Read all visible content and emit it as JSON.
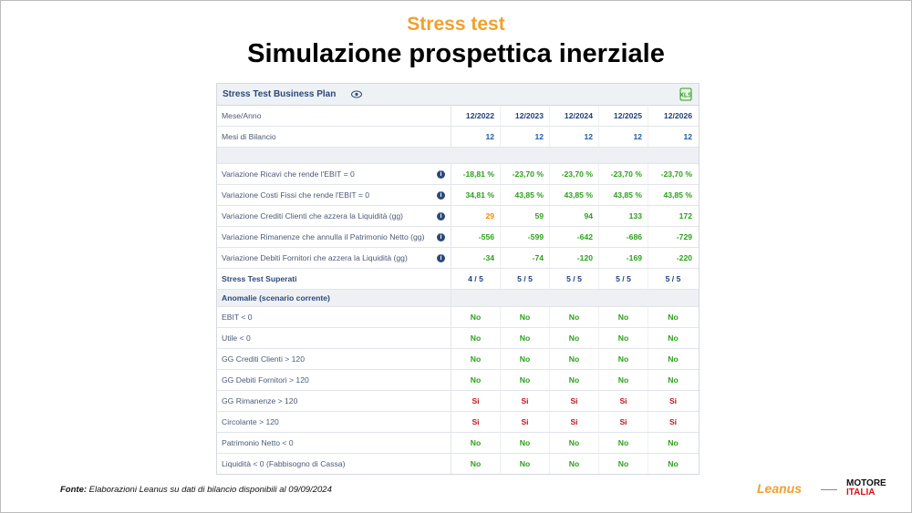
{
  "header": {
    "kicker": "Stress test",
    "title": "Simulazione prospettica inerziale"
  },
  "table": {
    "title": "Stress Test Business Plan",
    "period_label": "Mese/Anno",
    "periods": [
      "12/2022",
      "12/2023",
      "12/2024",
      "12/2025",
      "12/2026"
    ],
    "months_label": "Mesi di Bilancio",
    "months": [
      "12",
      "12",
      "12",
      "12",
      "12"
    ],
    "stress_rows": [
      {
        "label": "Variazione Ricavi che rende l'EBIT = 0",
        "values": [
          "-18,81 %",
          "-23,70 %",
          "-23,70 %",
          "-23,70 %",
          "-23,70 %"
        ],
        "colors": [
          "#2ca01c",
          "#2ca01c",
          "#2ca01c",
          "#2ca01c",
          "#2ca01c"
        ]
      },
      {
        "label": "Variazione Costi Fissi che rende l'EBIT = 0",
        "values": [
          "34,81 %",
          "43,85 %",
          "43,85 %",
          "43,85 %",
          "43,85 %"
        ],
        "colors": [
          "#2ca01c",
          "#2ca01c",
          "#2ca01c",
          "#2ca01c",
          "#2ca01c"
        ]
      },
      {
        "label": "Variazione Crediti Clienti che azzera la Liquidità (gg)",
        "values": [
          "29",
          "59",
          "94",
          "133",
          "172"
        ],
        "colors": [
          "#f08a00",
          "#2ca01c",
          "#2ca01c",
          "#2ca01c",
          "#2ca01c"
        ]
      },
      {
        "label": "Variazione Rimanenze che annulla il Patrimonio Netto (gg)",
        "values": [
          "-556",
          "-599",
          "-642",
          "-686",
          "-729"
        ],
        "colors": [
          "#2ca01c",
          "#2ca01c",
          "#2ca01c",
          "#2ca01c",
          "#2ca01c"
        ]
      },
      {
        "label": "Variazione Debiti Fornitori che azzera la Liquidità (gg)",
        "values": [
          "-34",
          "-74",
          "-120",
          "-169",
          "-220"
        ],
        "colors": [
          "#2ca01c",
          "#2ca01c",
          "#2ca01c",
          "#2ca01c",
          "#2ca01c"
        ]
      }
    ],
    "summary": {
      "label": "Stress Test Superati",
      "values": [
        "4 / 5",
        "5 / 5",
        "5 / 5",
        "5 / 5",
        "5 / 5"
      ]
    },
    "anomalies": {
      "title": "Anomalie (scenario corrente)",
      "rows": [
        {
          "label": "EBIT < 0",
          "values": [
            "No",
            "No",
            "No",
            "No",
            "No"
          ],
          "color": "#2ca01c"
        },
        {
          "label": "Utile < 0",
          "values": [
            "No",
            "No",
            "No",
            "No",
            "No"
          ],
          "color": "#2ca01c"
        },
        {
          "label": "GG Crediti Clienti > 120",
          "values": [
            "No",
            "No",
            "No",
            "No",
            "No"
          ],
          "color": "#2ca01c"
        },
        {
          "label": "GG Debiti Fornitori > 120",
          "values": [
            "No",
            "No",
            "No",
            "No",
            "No"
          ],
          "color": "#2ca01c"
        },
        {
          "label": "GG Rimanenze > 120",
          "values": [
            "Si",
            "Si",
            "Si",
            "Si",
            "Si"
          ],
          "color": "#c0141c"
        },
        {
          "label": "Circolante > 120",
          "values": [
            "Si",
            "Si",
            "Si",
            "Si",
            "Si"
          ],
          "color": "#c0141c"
        },
        {
          "label": "Patrimonio Netto < 0",
          "values": [
            "No",
            "No",
            "No",
            "No",
            "No"
          ],
          "color": "#2ca01c"
        },
        {
          "label": "Liquidità < 0 (Fabbisogno di Cassa)",
          "values": [
            "No",
            "No",
            "No",
            "No",
            "No"
          ],
          "color": "#2ca01c"
        }
      ]
    }
  },
  "footer": {
    "source_label": "Fonte:",
    "source": "Elaborazioni Leanus su dati di bilancio disponibili al 09/09/2024",
    "logo_leanus": "Leanus",
    "logo_motore": "MOTORE",
    "logo_italia": "ITALIA"
  }
}
